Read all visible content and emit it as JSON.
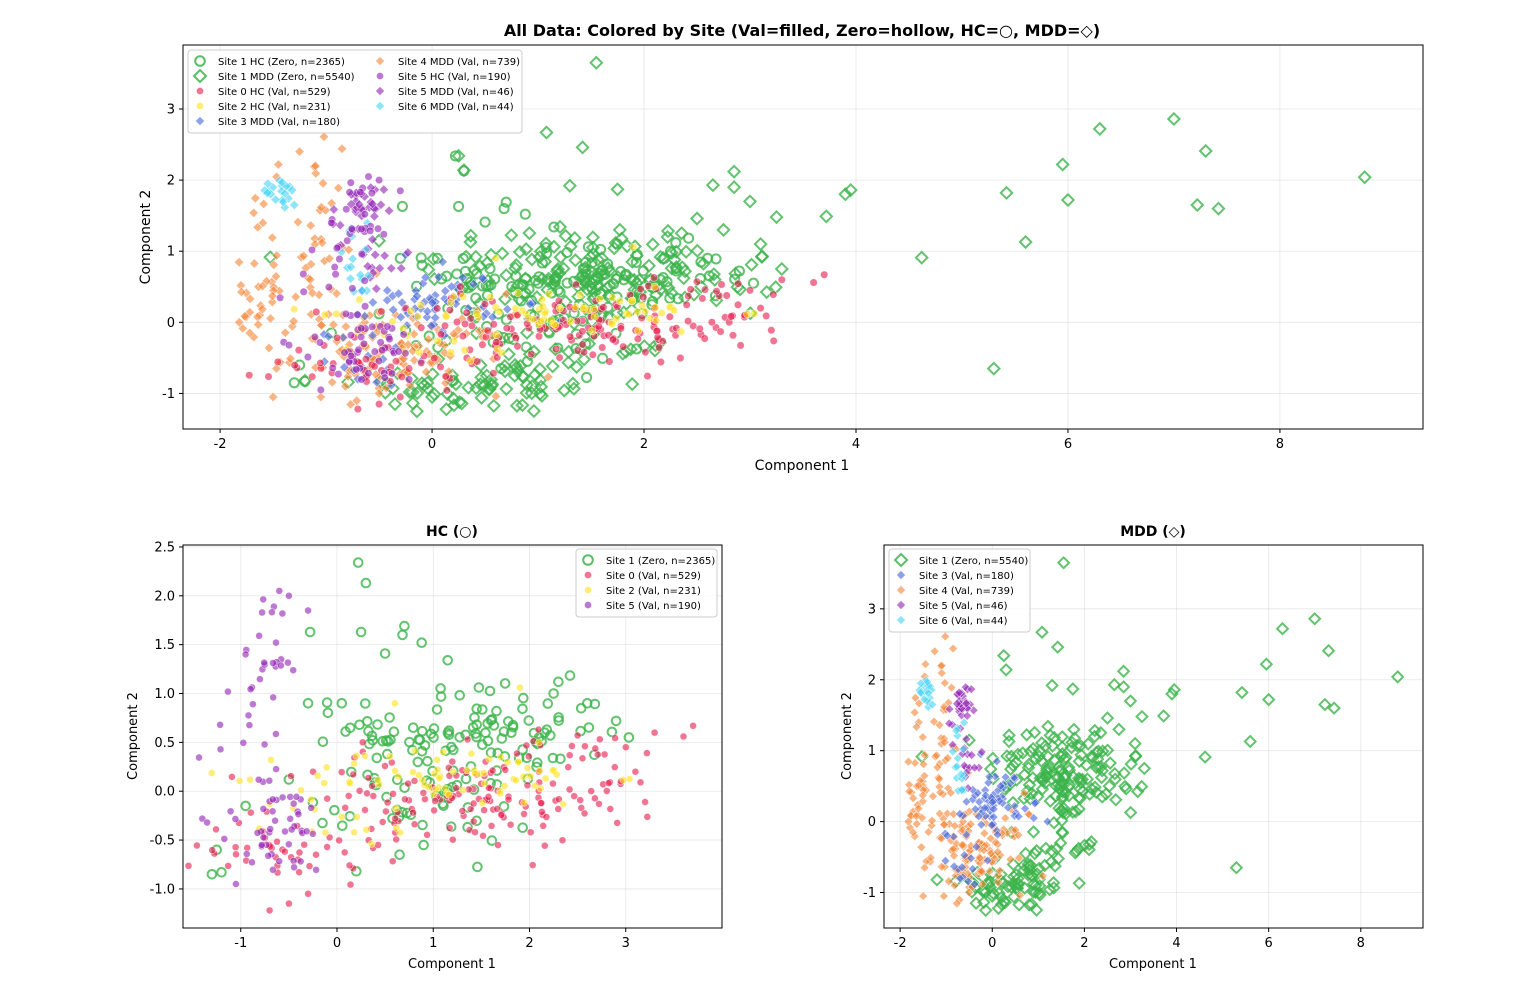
{
  "chart_data": [
    {
      "type": "scatter",
      "id": "all",
      "title": "All Data: Colored by Site (Val=filled, Zero=hollow, HC=○, MDD=◇)",
      "xlabel": "Component 1",
      "ylabel": "Component 2",
      "xlim": [
        -2.35,
        9.35
      ],
      "ylim": [
        -1.5,
        3.9
      ],
      "xticks": [
        -2,
        0,
        2,
        4,
        6,
        8
      ],
      "yticks": [
        -1,
        0,
        1,
        2,
        3
      ],
      "xtick_labels": [
        "-2",
        "0",
        "2",
        "4",
        "6",
        "8"
      ],
      "ytick_labels": [
        "-1",
        "0",
        "1",
        "2",
        "3"
      ],
      "legend_columns": 2,
      "legend_location": "top-left",
      "legend": [
        {
          "label": "Site 1 HC (Zero, n=2365)",
          "color": "#3cb44b",
          "marker": "circle",
          "hollow": true
        },
        {
          "label": "Site 1 MDD (Zero, n=5540)",
          "color": "#3cb44b",
          "marker": "diamond",
          "hollow": true
        },
        {
          "label": "Site 0 HC (Val, n=529)",
          "color": "#e6194b",
          "marker": "circle",
          "hollow": false
        },
        {
          "label": "Site 2 HC (Val, n=231)",
          "color": "#ffe119",
          "marker": "circle",
          "hollow": false
        },
        {
          "label": "Site 3 MDD (Val, n=180)",
          "color": "#4363d8",
          "marker": "diamond",
          "hollow": false
        },
        {
          "label": "Site 4 MDD (Val, n=739)",
          "color": "#f58231",
          "marker": "diamond",
          "hollow": false
        },
        {
          "label": "Site 5 HC (Val, n=190)",
          "color": "#911eb4",
          "marker": "circle",
          "hollow": false
        },
        {
          "label": "Site 5 MDD (Val, n=46)",
          "color": "#911eb4",
          "marker": "diamond",
          "hollow": false
        },
        {
          "label": "Site 6 MDD (Val, n=44)",
          "color": "#42d4f4",
          "marker": "diamond",
          "hollow": false
        }
      ],
      "series": [
        {
          "name": "Site 1 MDD (Zero)",
          "color": "#3cb44b",
          "marker": "diamond",
          "hollow": true,
          "group": "MDD",
          "clusters": [
            {
              "n": 110,
              "cx": 1.3,
              "cy": 0.75,
              "sx": 0.7,
              "sy": 0.35
            },
            {
              "n": 70,
              "cx": 0.5,
              "cy": -0.9,
              "sx": 0.6,
              "sy": 0.2
            },
            {
              "n": 40,
              "cx": 2.3,
              "cy": 0.55,
              "sx": 0.5,
              "sy": 0.3
            },
            {
              "n": 25,
              "cx": 1.3,
              "cy": -0.35,
              "sx": 0.5,
              "sy": 0.2
            }
          ],
          "points": [
            [
              1.55,
              3.65
            ],
            [
              1.08,
              2.67
            ],
            [
              1.42,
              2.46
            ],
            [
              6.3,
              2.72
            ],
            [
              7.0,
              2.86
            ],
            [
              7.3,
              2.41
            ],
            [
              5.95,
              2.22
            ],
            [
              8.8,
              2.04
            ],
            [
              7.22,
              1.65
            ],
            [
              7.42,
              1.6
            ],
            [
              6.0,
              1.72
            ],
            [
              5.42,
              1.82
            ],
            [
              3.95,
              1.86
            ],
            [
              3.9,
              1.8
            ],
            [
              3.72,
              1.49
            ],
            [
              5.6,
              1.13
            ],
            [
              4.62,
              0.91
            ],
            [
              5.3,
              -0.65
            ],
            [
              2.85,
              2.12
            ],
            [
              2.65,
              1.93
            ],
            [
              2.85,
              1.9
            ],
            [
              3.0,
              1.7
            ],
            [
              3.25,
              1.48
            ],
            [
              2.75,
              1.3
            ],
            [
              1.3,
              1.92
            ],
            [
              2.5,
              1.46
            ],
            [
              1.75,
              1.87
            ],
            [
              0.3,
              2.14
            ],
            [
              0.25,
              2.34
            ],
            [
              -1.2,
              -0.82
            ],
            [
              -0.35,
              -1.15
            ],
            [
              0.0,
              -1.05
            ],
            [
              3.3,
              0.75
            ],
            [
              3.1,
              1.1
            ]
          ]
        },
        {
          "name": "Site 1 HC (Zero)",
          "color": "#3cb44b",
          "marker": "circle",
          "hollow": true,
          "group": "HC",
          "clusters": [
            {
              "n": 90,
              "cx": 1.6,
              "cy": 0.6,
              "sx": 0.6,
              "sy": 0.25
            },
            {
              "n": 35,
              "cx": 0.5,
              "cy": 0.3,
              "sx": 0.4,
              "sy": 0.35
            },
            {
              "n": 25,
              "cx": 1.0,
              "cy": -0.2,
              "sx": 0.5,
              "sy": 0.2
            }
          ],
          "points": [
            [
              0.22,
              2.34
            ],
            [
              0.3,
              2.13
            ],
            [
              -0.28,
              1.63
            ],
            [
              0.25,
              1.63
            ],
            [
              0.7,
              1.69
            ],
            [
              0.68,
              1.6
            ],
            [
              0.88,
              1.52
            ],
            [
              0.5,
              1.41
            ],
            [
              1.15,
              1.34
            ],
            [
              2.3,
              1.12
            ],
            [
              2.25,
              1.0
            ],
            [
              2.6,
              0.9
            ],
            [
              2.9,
              0.72
            ],
            [
              -1.3,
              -0.85
            ],
            [
              -1.2,
              -0.83
            ],
            [
              -1.25,
              -0.6
            ],
            [
              -0.95,
              -0.15
            ],
            [
              -0.3,
              0.9
            ],
            [
              0.05,
              0.9
            ],
            [
              0.2,
              -0.82
            ],
            [
              0.65,
              -0.65
            ],
            [
              0.9,
              -0.55
            ],
            [
              -0.5,
              0.12
            ]
          ]
        },
        {
          "name": "Site 4 MDD (Val)",
          "color": "#f58231",
          "marker": "diamond",
          "hollow": false,
          "group": "MDD",
          "clusters": [
            {
              "n": 110,
              "cx": -0.3,
              "cy": -0.45,
              "sx": 0.5,
              "sy": 0.28
            },
            {
              "n": 35,
              "cx": -1.1,
              "cy": 0.6,
              "sx": 0.3,
              "sy": 0.45
            },
            {
              "n": 25,
              "cx": -1.6,
              "cy": 0.2,
              "sx": 0.15,
              "sy": 0.3
            },
            {
              "n": 20,
              "cx": -1.3,
              "cy": 1.6,
              "sx": 0.25,
              "sy": 0.4
            }
          ],
          "points": [
            [
              -1.02,
              2.61
            ],
            [
              -0.85,
              2.44
            ],
            [
              -1.1,
              2.2
            ],
            [
              -1.45,
              2.22
            ],
            [
              -1.82,
              0.0
            ],
            [
              -1.72,
              -0.15
            ],
            [
              -1.5,
              -1.05
            ],
            [
              -1.05,
              -1.05
            ],
            [
              -0.5,
              -1.0
            ],
            [
              0.7,
              0.4
            ],
            [
              0.8,
              0.1
            ]
          ]
        },
        {
          "name": "Site 3 MDD (Val)",
          "color": "#4363d8",
          "marker": "diamond",
          "hollow": false,
          "group": "MDD",
          "clusters": [
            {
              "n": 60,
              "cx": 0.05,
              "cy": 0.3,
              "sx": 0.3,
              "sy": 0.22
            },
            {
              "n": 15,
              "cx": -0.6,
              "cy": -0.5,
              "sx": 0.2,
              "sy": 0.2
            }
          ],
          "points": [
            [
              0.1,
              0.85
            ],
            [
              -0.25,
              0.95
            ],
            [
              0.9,
              0.05
            ],
            [
              1.2,
              0.0
            ],
            [
              -0.7,
              -0.8
            ]
          ]
        },
        {
          "name": "Site 5 MDD (Val)",
          "color": "#911eb4",
          "marker": "diamond",
          "hollow": false,
          "group": "MDD",
          "clusters": [
            {
              "n": 30,
              "cx": -0.7,
              "cy": 1.55,
              "sx": 0.12,
              "sy": 0.2
            },
            {
              "n": 14,
              "cx": -0.5,
              "cy": 0.8,
              "sx": 0.15,
              "sy": 0.25
            }
          ],
          "points": []
        },
        {
          "name": "Site 6 MDD (Val)",
          "color": "#42d4f4",
          "marker": "diamond",
          "hollow": false,
          "group": "MDD",
          "clusters": [
            {
              "n": 18,
              "cx": -1.45,
              "cy": 1.8,
              "sx": 0.12,
              "sy": 0.12
            },
            {
              "n": 16,
              "cx": -0.7,
              "cy": 0.85,
              "sx": 0.12,
              "sy": 0.25
            }
          ],
          "points": [
            [
              -1.55,
              1.95
            ],
            [
              -1.3,
              1.65
            ]
          ]
        },
        {
          "name": "Site 0 HC (Val)",
          "color": "#e6194b",
          "marker": "circle",
          "hollow": false,
          "group": "HC",
          "clusters": [
            {
              "n": 130,
              "cx": 1.2,
              "cy": -0.1,
              "sx": 0.9,
              "sy": 0.25
            },
            {
              "n": 40,
              "cx": -0.5,
              "cy": -0.55,
              "sx": 0.5,
              "sy": 0.2
            },
            {
              "n": 30,
              "cx": 2.5,
              "cy": 0.2,
              "sx": 0.5,
              "sy": 0.25
            }
          ],
          "points": [
            [
              3.7,
              0.67
            ],
            [
              3.6,
              0.56
            ],
            [
              3.3,
              0.6
            ],
            [
              3.22,
              0.39
            ],
            [
              3.1,
              0.2
            ],
            [
              2.95,
              0.1
            ],
            [
              -0.7,
              -1.22
            ],
            [
              -0.3,
              -1.05
            ],
            [
              -0.5,
              -1.15
            ],
            [
              3.0,
              0.45
            ]
          ]
        },
        {
          "name": "Site 2 HC (Val)",
          "color": "#ffe119",
          "marker": "circle",
          "hollow": false,
          "group": "HC",
          "clusters": [
            {
              "n": 70,
              "cx": 1.2,
              "cy": 0.15,
              "sx": 0.8,
              "sy": 0.15
            },
            {
              "n": 15,
              "cx": 0.1,
              "cy": -0.3,
              "sx": 0.4,
              "sy": 0.15
            }
          ],
          "points": [
            [
              1.9,
              1.06
            ],
            [
              0.6,
              0.9
            ],
            [
              2.1,
              0.5
            ]
          ]
        },
        {
          "name": "Site 5 HC (Val)",
          "color": "#911eb4",
          "marker": "circle",
          "hollow": false,
          "group": "HC",
          "clusters": [
            {
              "n": 45,
              "cx": -0.6,
              "cy": -0.4,
              "sx": 0.35,
              "sy": 0.25
            },
            {
              "n": 20,
              "cx": -0.65,
              "cy": 1.5,
              "sx": 0.12,
              "sy": 0.3
            },
            {
              "n": 15,
              "cx": -0.9,
              "cy": 0.4,
              "sx": 0.2,
              "sy": 0.4
            }
          ],
          "points": [
            [
              -0.6,
              2.05
            ],
            [
              -0.5,
              2.0
            ],
            [
              -0.3,
              1.85
            ],
            [
              -1.4,
              -0.28
            ],
            [
              -1.35,
              -0.32
            ],
            [
              -1.05,
              -0.95
            ],
            [
              -0.95,
              1.4
            ]
          ]
        }
      ]
    },
    {
      "type": "scatter",
      "id": "hc",
      "title": "HC (○)",
      "xlabel": "Component 1",
      "ylabel": "Component 2",
      "xlim": [
        -1.6,
        4.0
      ],
      "ylim": [
        -1.4,
        2.52
      ],
      "xticks": [
        -1,
        0,
        1,
        2,
        3
      ],
      "yticks": [
        -1.0,
        -0.5,
        0.0,
        0.5,
        1.0,
        1.5,
        2.0,
        2.5
      ],
      "xtick_labels": [
        "-1",
        "0",
        "1",
        "2",
        "3"
      ],
      "ytick_labels": [
        "-1.0",
        "-0.5",
        "0.0",
        "0.5",
        "1.0",
        "1.5",
        "2.0",
        "2.5"
      ],
      "legend_location": "top-right",
      "legend": [
        {
          "label": "Site 1 (Zero, n=2365)",
          "color": "#3cb44b",
          "marker": "circle",
          "hollow": true
        },
        {
          "label": "Site 0 (Val, n=529)",
          "color": "#e6194b",
          "marker": "circle",
          "hollow": false
        },
        {
          "label": "Site 2 (Val, n=231)",
          "color": "#ffe119",
          "marker": "circle",
          "hollow": false
        },
        {
          "label": "Site 5 (Val, n=190)",
          "color": "#911eb4",
          "marker": "circle",
          "hollow": false
        }
      ]
    },
    {
      "type": "scatter",
      "id": "mdd",
      "title": "MDD (◇)",
      "xlabel": "Component 1",
      "ylabel": "Component 2",
      "xlim": [
        -2.35,
        9.35
      ],
      "ylim": [
        -1.5,
        3.9
      ],
      "xticks": [
        -2,
        0,
        2,
        4,
        6,
        8
      ],
      "yticks": [
        -1,
        0,
        1,
        2,
        3
      ],
      "xtick_labels": [
        "-2",
        "0",
        "2",
        "4",
        "6",
        "8"
      ],
      "ytick_labels": [
        "-1",
        "0",
        "1",
        "2",
        "3"
      ],
      "legend_location": "top-left",
      "legend": [
        {
          "label": "Site 1 (Zero, n=5540)",
          "color": "#3cb44b",
          "marker": "diamond",
          "hollow": true
        },
        {
          "label": "Site 3 (Val, n=180)",
          "color": "#4363d8",
          "marker": "diamond",
          "hollow": false
        },
        {
          "label": "Site 4 (Val, n=739)",
          "color": "#f58231",
          "marker": "diamond",
          "hollow": false
        },
        {
          "label": "Site 5 (Val, n=46)",
          "color": "#911eb4",
          "marker": "diamond",
          "hollow": false
        },
        {
          "label": "Site 6 (Val, n=44)",
          "color": "#42d4f4",
          "marker": "diamond",
          "hollow": false
        }
      ]
    }
  ]
}
